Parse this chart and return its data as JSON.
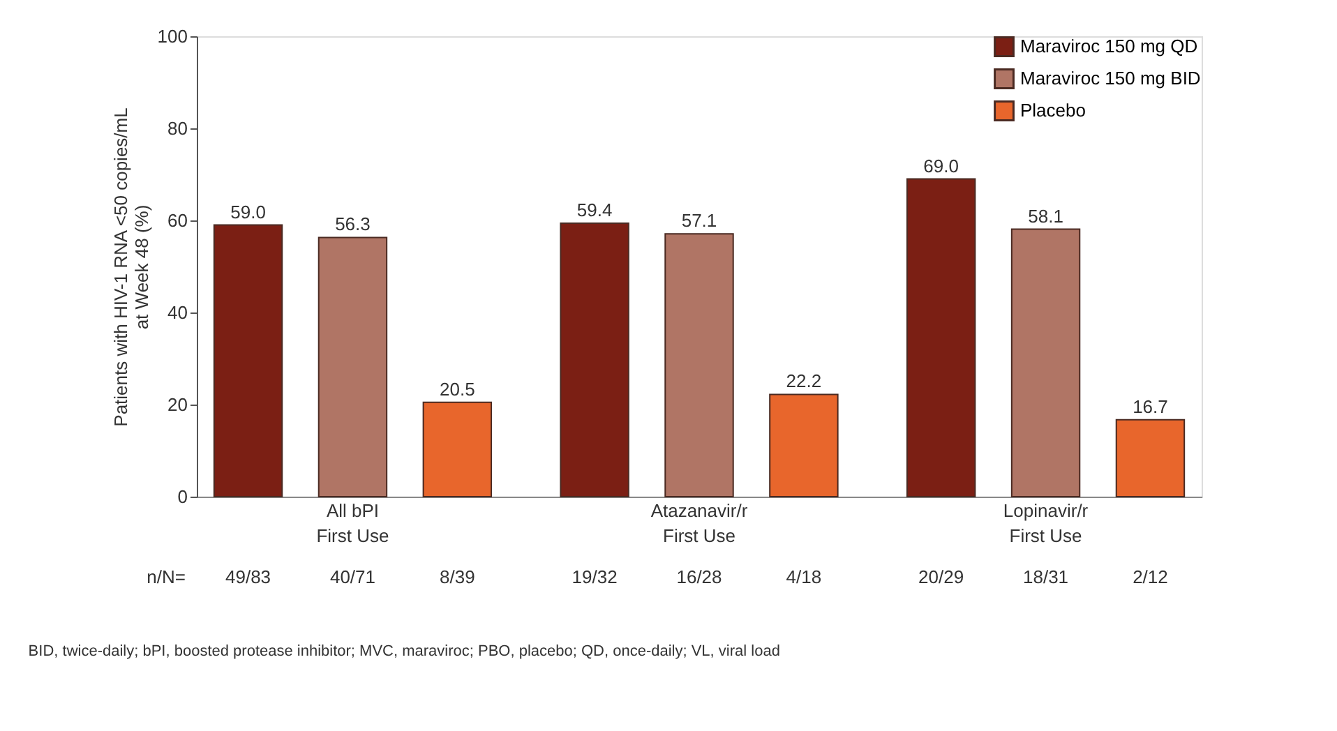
{
  "chart_data": {
    "type": "bar",
    "ylabel": "Patients with HIV-1 RNA <50 copies/mL at Week 48 (%)",
    "categories": [
      "All bPI\nFirst Use",
      "Atazanavir/r\nFirst Use",
      "Lopinavir/r\nFirst Use"
    ],
    "series": [
      {
        "name": "Maraviroc 150 mg QD",
        "color": "#7b1f14",
        "values": [
          59.0,
          59.4,
          69.0
        ],
        "value_labels": [
          "59.0",
          "59.4",
          "69.0"
        ]
      },
      {
        "name": "Maraviroc 150 mg BID",
        "color": "#b07565",
        "values": [
          56.3,
          57.1,
          58.1
        ],
        "value_labels": [
          "56.3",
          "57.1",
          "58.1"
        ]
      },
      {
        "name": "Placebo",
        "color": "#e8662c",
        "values": [
          20.5,
          22.2,
          16.7
        ],
        "value_labels": [
          "20.5",
          "22.2",
          "16.7"
        ]
      }
    ],
    "ylim": [
      0,
      100
    ],
    "yticks": [
      0,
      20,
      40,
      60,
      80,
      100
    ],
    "grid": false,
    "legend": "top right",
    "annotations": [
      "n/N=",
      "49/83",
      "40/71",
      "8/39",
      "19/32",
      "16/28",
      "4/18",
      "20/29",
      "18/31",
      "2/12",
      "BID, twice-daily; bPI, boosted protease inhibitor; MVC, maraviroc; PBO, placebo; QD, once-daily; VL, viral load"
    ]
  }
}
